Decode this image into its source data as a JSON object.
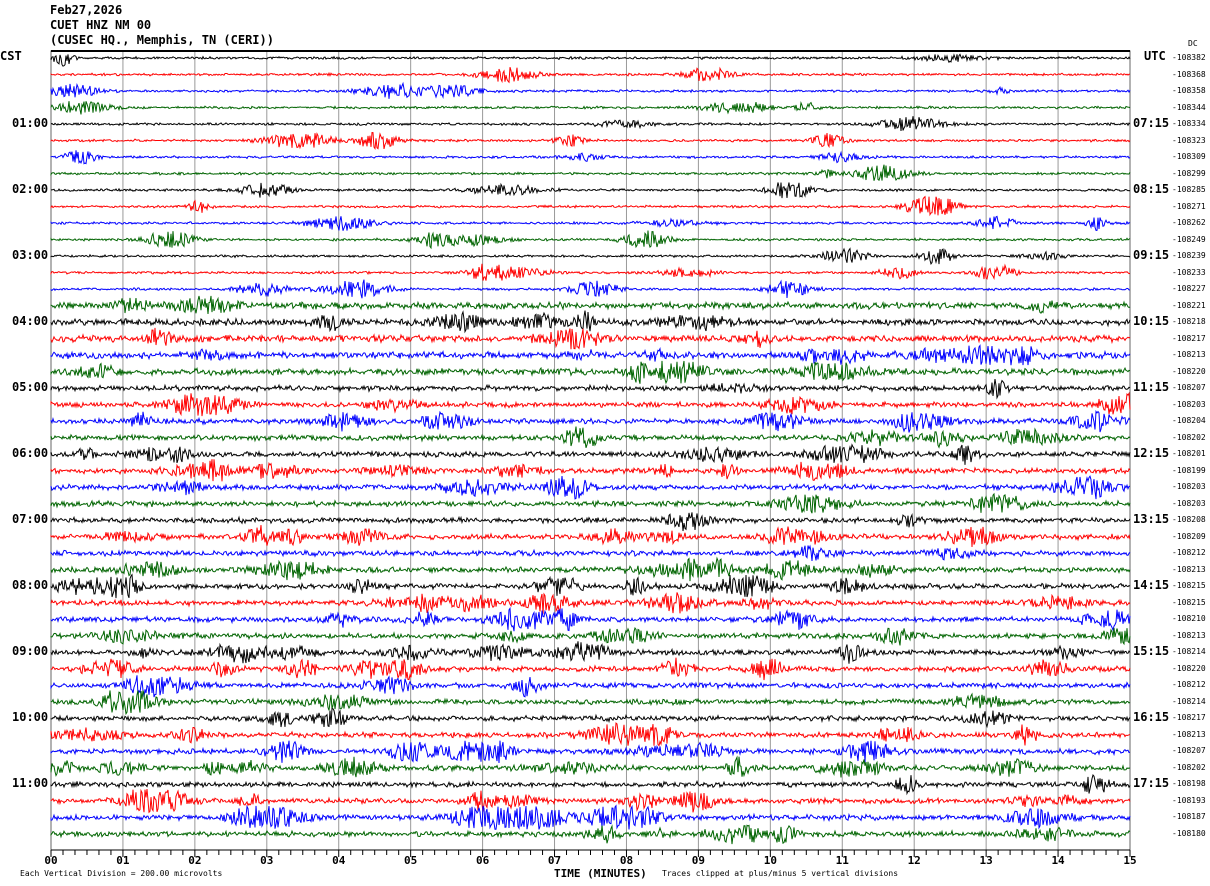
{
  "header": {
    "date": "Feb27,2026",
    "station": "CUET HNZ NM 00",
    "location": "(CUSEC HQ., Memphis, TN (CERI))"
  },
  "chart_data": {
    "type": "line",
    "title": "Feb27,2026 CUET HNZ NM 00 (CUSEC HQ., Memphis, TN (CERI))",
    "xlabel": "TIME (MINUTES)",
    "xlim": [
      0,
      15
    ],
    "x_ticks": [
      "00",
      "01",
      "02",
      "03",
      "04",
      "05",
      "06",
      "07",
      "08",
      "09",
      "10",
      "11",
      "12",
      "13",
      "14",
      "15"
    ],
    "grid": true,
    "left_axis_title": "CST",
    "right_axis_title": "UTC",
    "dc_label": "DC",
    "left_hour_labels": [
      "01:00",
      "02:00",
      "03:00",
      "04:00",
      "05:00",
      "06:00",
      "07:00",
      "08:00",
      "09:00",
      "10:00",
      "11:00"
    ],
    "right_hour_labels": [
      "07:15",
      "08:15",
      "09:15",
      "10:15",
      "11:15",
      "12:15",
      "13:15",
      "14:15",
      "15:15",
      "16:15",
      "17:15"
    ],
    "trace_colors": [
      "#000000",
      "#ff0000",
      "#0000ff",
      "#006400"
    ],
    "dc_offsets": [
      "-108382",
      "-108368",
      "-108358",
      "-108344",
      "-108334",
      "-108323",
      "-108309",
      "-108299",
      "-108285",
      "-108271",
      "-108262",
      "-108249",
      "-108239",
      "-108233",
      "-108227",
      "-108221",
      "-108218",
      "-108217",
      "-108213",
      "-108220",
      "-108207",
      "-108203",
      "-108204",
      "-108202",
      "-108201",
      "-108199",
      "-108203",
      "-108203",
      "-108208",
      "-108209",
      "-108212",
      "-108213",
      "-108215",
      "-108215",
      "-108210",
      "-108213",
      "-108214",
      "-108220",
      "-108212",
      "-108214",
      "-108217",
      "-108213",
      "-108207",
      "-108202",
      "-108198",
      "-108193",
      "-108187",
      "-108180"
    ],
    "scale_note": "Each Vertical Division =  200.00 microvolts",
    "clip_note": "Traces clipped at plus/minus 5 vertical divisions"
  }
}
